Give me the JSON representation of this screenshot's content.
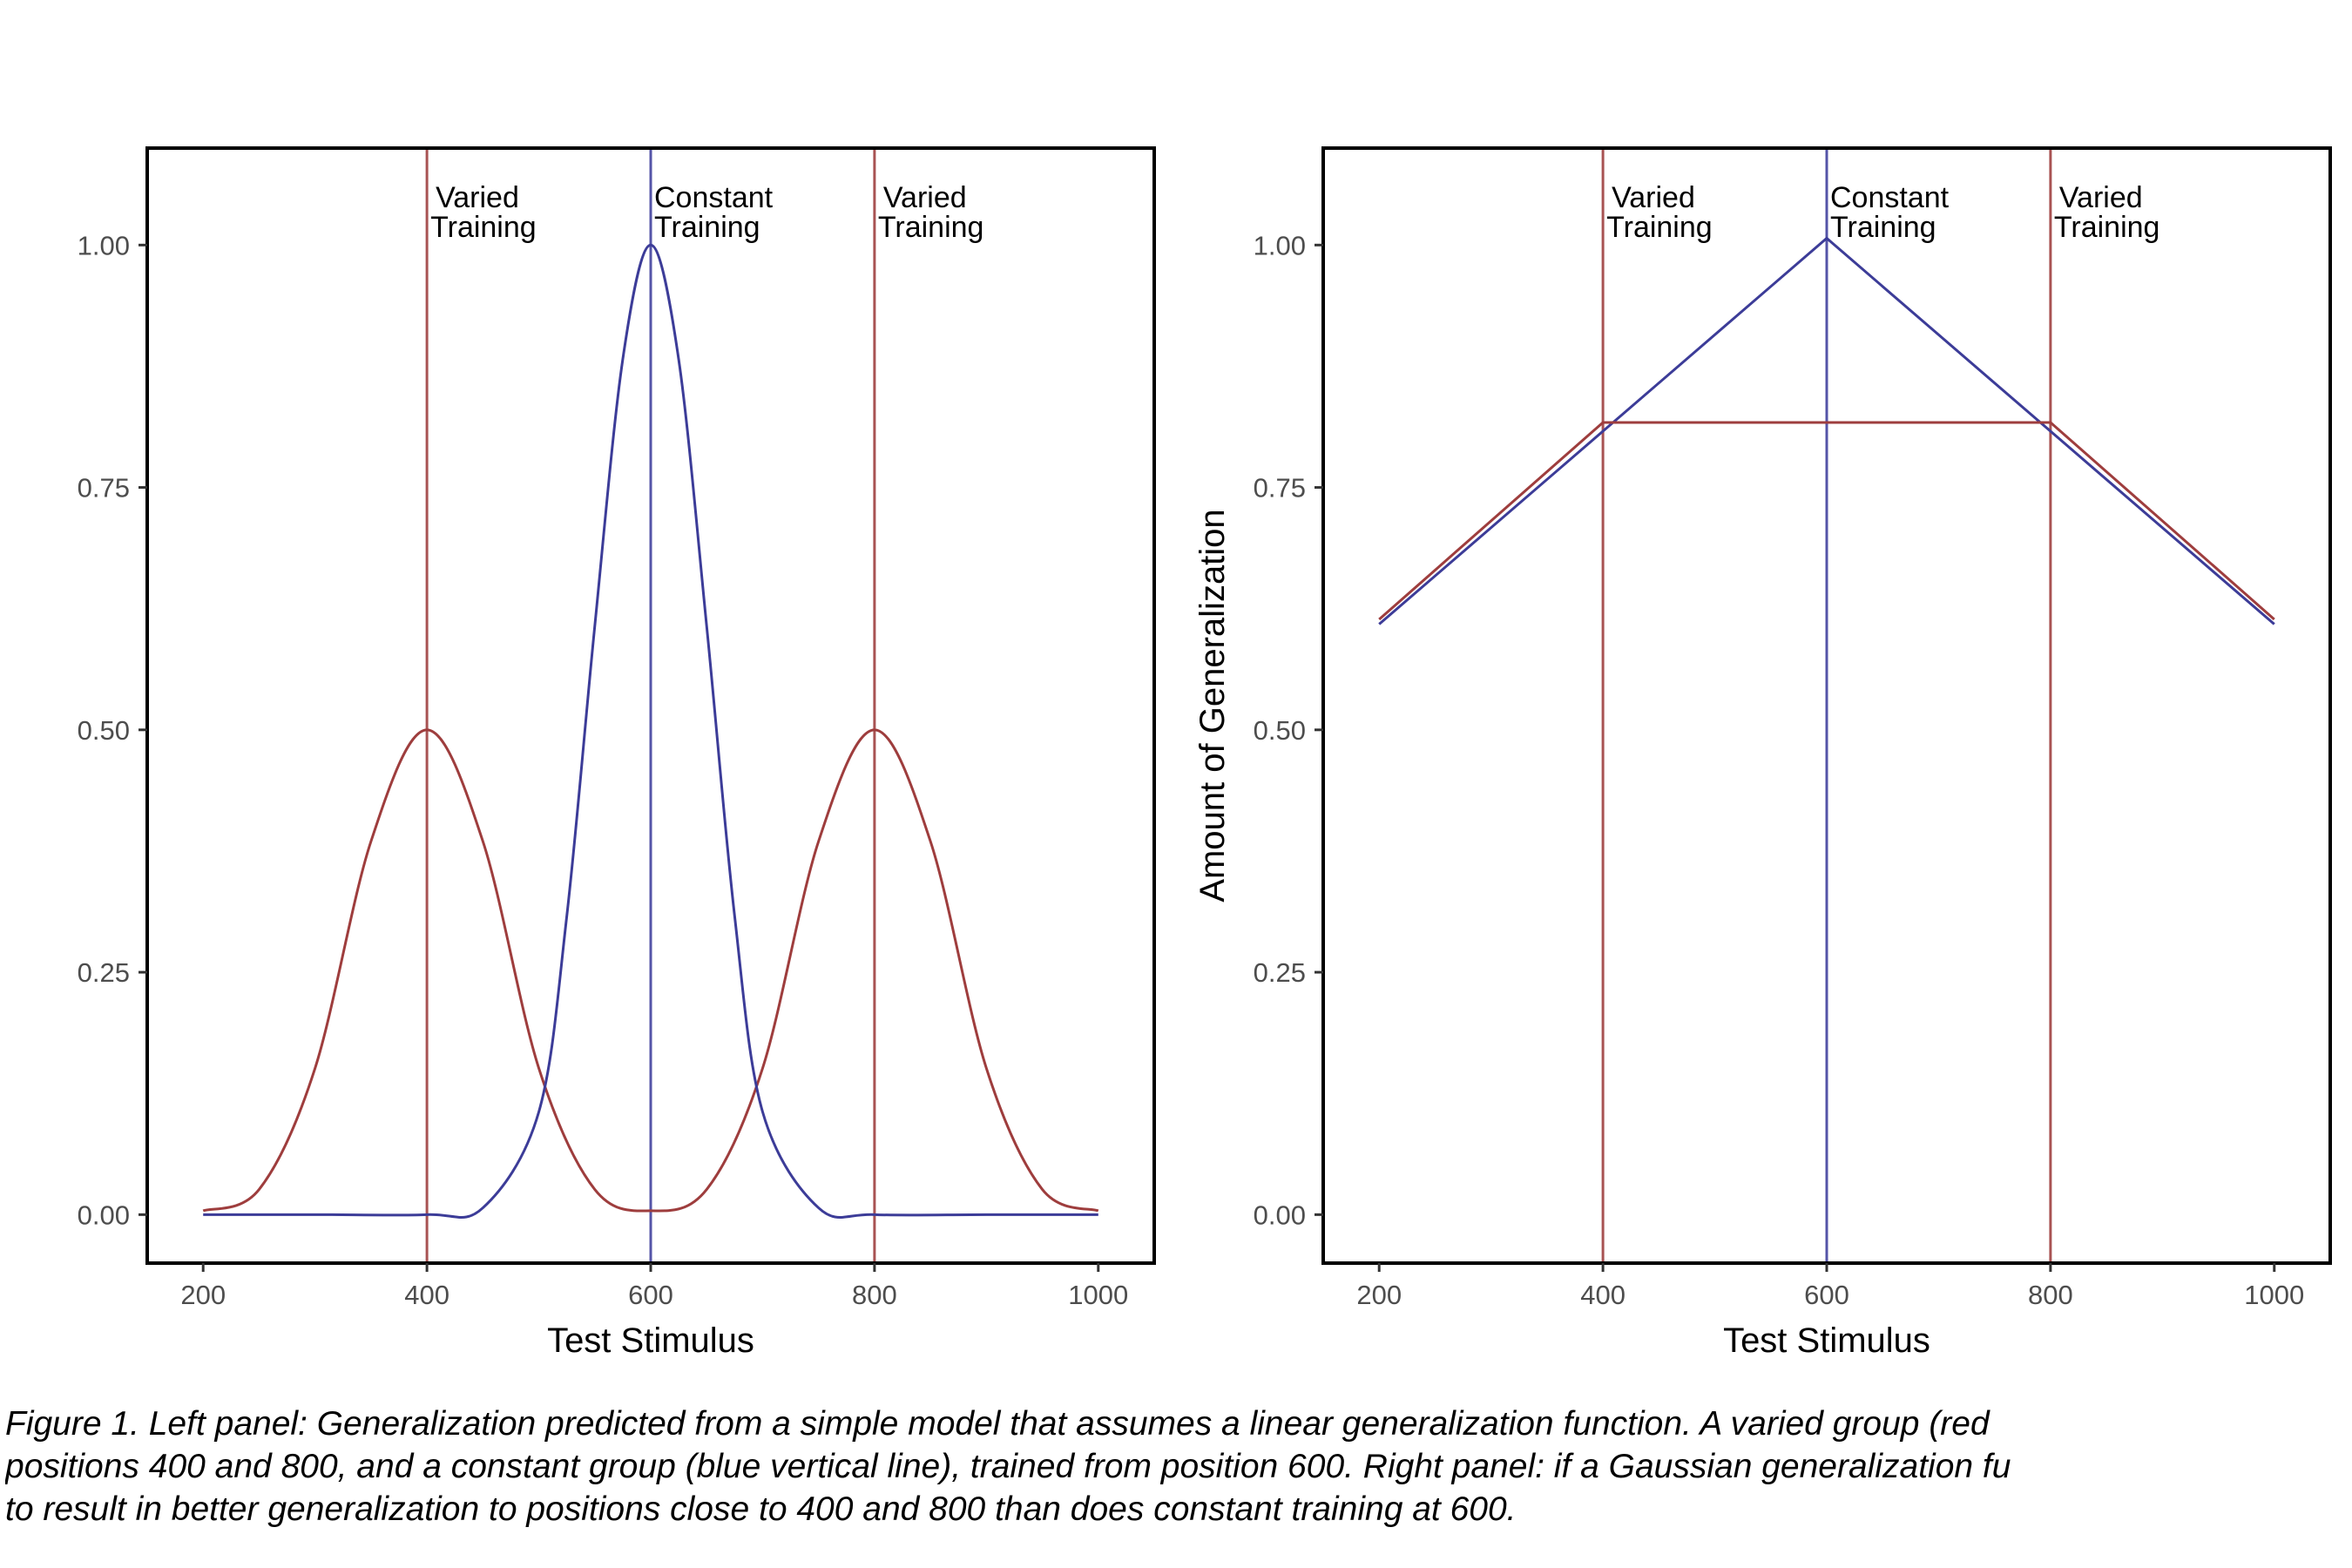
{
  "chart_data": [
    {
      "type": "line",
      "panel": "left",
      "title": "",
      "xlabel": "Test Stimulus",
      "ylabel": "",
      "xlim": [
        150,
        1050
      ],
      "ylim": [
        -0.05,
        1.1
      ],
      "x_ticks": [
        200,
        400,
        600,
        800,
        1000
      ],
      "x_tick_labels": [
        "200",
        "400",
        "600",
        "800",
        "1000"
      ],
      "y_ticks": [
        0,
        0.25,
        0.5,
        0.75,
        1.0
      ],
      "y_tick_labels": [
        "0.00",
        "0.25",
        "0.50",
        "0.75",
        "1.00"
      ],
      "grid": false,
      "series": [
        {
          "color": "#9e3d3d",
          "x": [
            200,
            250,
            300,
            350,
            400,
            450,
            500,
            550,
            600,
            650,
            700,
            750,
            800,
            850,
            900,
            950,
            1000
          ],
          "y": [
            0.004,
            0.026,
            0.151,
            0.385,
            0.5,
            0.385,
            0.151,
            0.026,
            0.004,
            0.026,
            0.151,
            0.385,
            0.5,
            0.385,
            0.151,
            0.026,
            0.004
          ]
        },
        {
          "color": "#3c3c98",
          "x": [
            200,
            300,
            400,
            450,
            500,
            525,
            550,
            575,
            600,
            625,
            650,
            675,
            700,
            750,
            800,
            900,
            1000
          ],
          "y": [
            0.0,
            0.0,
            0.0,
            0.007,
            0.106,
            0.308,
            0.607,
            0.882,
            1.0,
            0.882,
            0.607,
            0.308,
            0.106,
            0.007,
            0.0,
            0.0,
            0.0
          ]
        }
      ],
      "vlines": [
        {
          "x": 400,
          "color": "#a85353"
        },
        {
          "x": 600,
          "color": "#5555a8"
        },
        {
          "x": 800,
          "color": "#a85353"
        }
      ],
      "annotations": [
        {
          "x": 400,
          "lines": [
            "Varied",
            "Training"
          ]
        },
        {
          "x": 600,
          "lines": [
            "Constant",
            "Training"
          ]
        },
        {
          "x": 800,
          "lines": [
            "Varied",
            "Training"
          ]
        }
      ]
    },
    {
      "type": "line",
      "panel": "right",
      "title": "",
      "xlabel": "Test Stimulus",
      "ylabel": "Amount of Generalization",
      "xlim": [
        150,
        1050
      ],
      "ylim": [
        -0.05,
        1.1
      ],
      "x_ticks": [
        200,
        400,
        600,
        800,
        1000
      ],
      "x_tick_labels": [
        "200",
        "400",
        "600",
        "800",
        "1000"
      ],
      "y_ticks": [
        0,
        0.25,
        0.5,
        0.75,
        1.0
      ],
      "y_tick_labels": [
        "0.00",
        "0.25",
        "0.50",
        "0.75",
        "1.00"
      ],
      "grid": false,
      "series": [
        {
          "color": "#3c3c98",
          "x": [
            200,
            400,
            600,
            800,
            1000
          ],
          "y": [
            0.609,
            0.808,
            1.007,
            0.808,
            0.609
          ]
        },
        {
          "color": "#9e3d3d",
          "x": [
            200,
            400,
            800,
            1000
          ],
          "y": [
            0.614,
            0.817,
            0.817,
            0.614
          ]
        }
      ],
      "vlines": [
        {
          "x": 400,
          "color": "#a85353"
        },
        {
          "x": 600,
          "color": "#5555a8"
        },
        {
          "x": 800,
          "color": "#a85353"
        }
      ],
      "annotations": [
        {
          "x": 400,
          "lines": [
            "Varied",
            "Training"
          ]
        },
        {
          "x": 600,
          "lines": [
            "Constant",
            "Training"
          ]
        },
        {
          "x": 800,
          "lines": [
            "Varied",
            "Training"
          ]
        }
      ]
    }
  ],
  "caption": {
    "lines": [
      "Figure 1. Left panel: Generalization predicted from a simple model that assumes a linear generalization function. A varied group (red",
      "positions 400 and 800, and a constant group (blue vertical line), trained from position 600. Right panel: if a Gaussian generalization fu",
      "to result in better generalization to positions close to 400 and 800 than does constant training at 600."
    ]
  }
}
